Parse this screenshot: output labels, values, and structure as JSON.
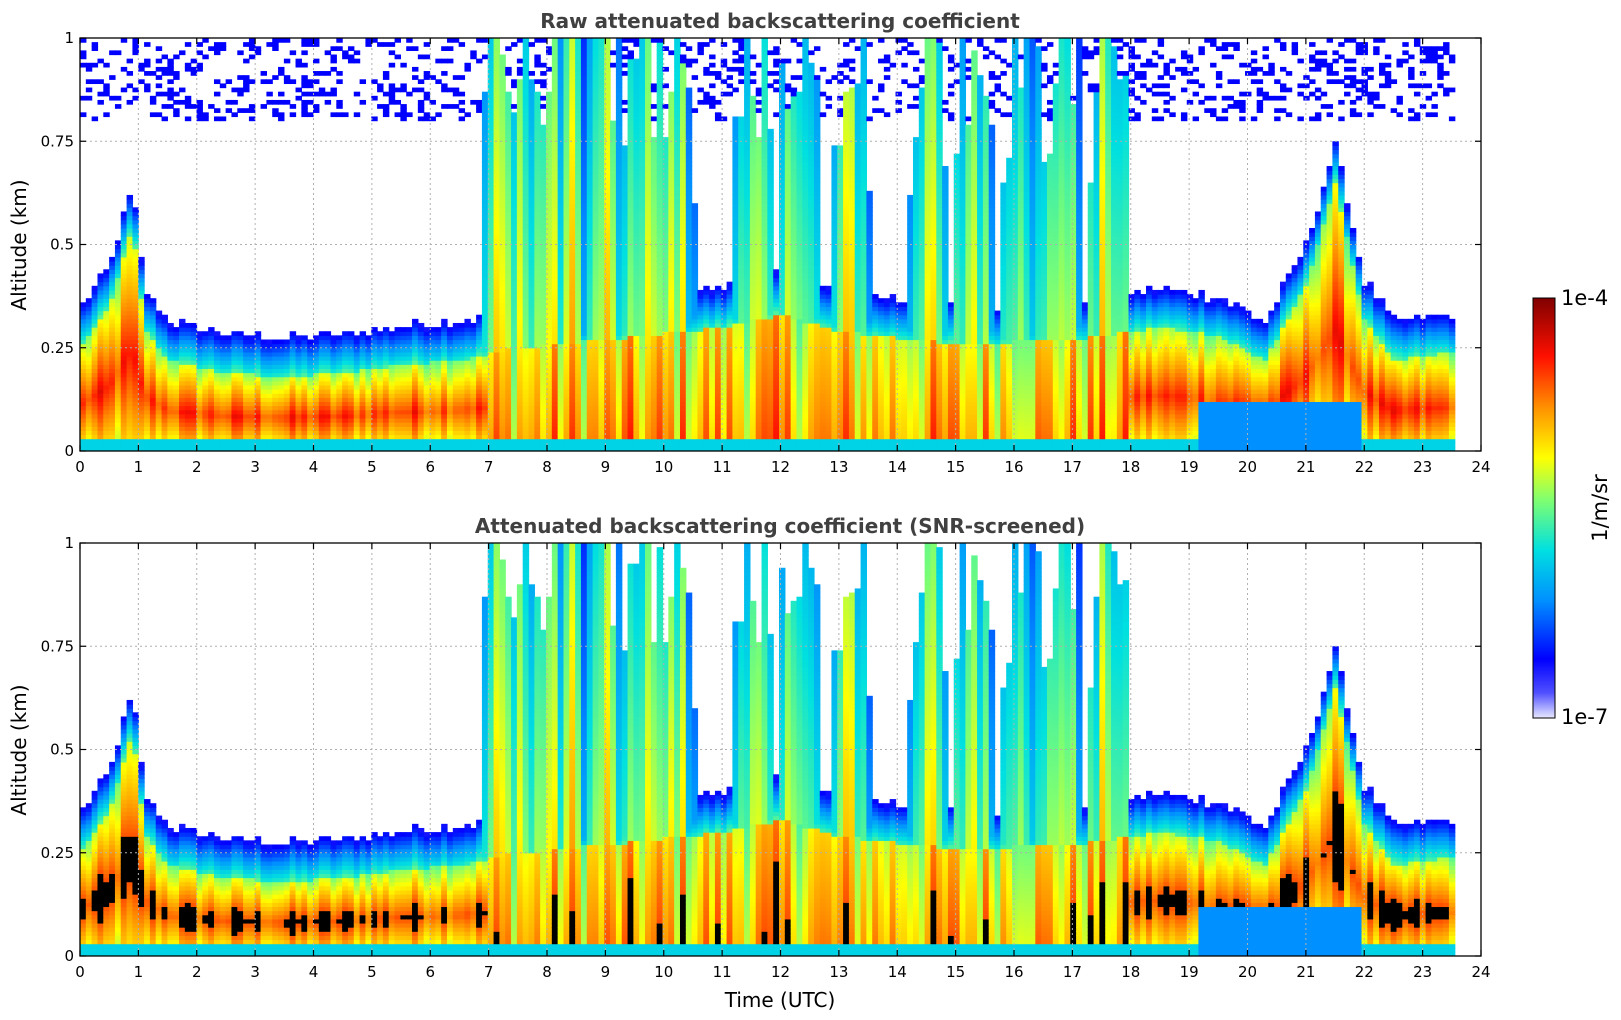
{
  "chart_data": [
    {
      "type": "heatmap",
      "title": "Raw attenuated backscattering coefficient",
      "xlabel": "",
      "ylabel": "Altitude (km)",
      "xlim": [
        0,
        24
      ],
      "ylim": [
        0,
        1
      ],
      "x_ticks": [
        "0",
        "1",
        "2",
        "3",
        "4",
        "5",
        "6",
        "7",
        "8",
        "9",
        "10",
        "11",
        "12",
        "13",
        "14",
        "15",
        "16",
        "17",
        "18",
        "19",
        "20",
        "21",
        "22",
        "23",
        "24"
      ],
      "y_ticks": [
        "0",
        "0.25",
        "0.5",
        "0.75",
        "1"
      ],
      "grid": true,
      "data_end_hour": 23.55,
      "boundary_layer_top_km": [
        {
          "t": 0,
          "z": 0.25
        },
        {
          "t": 0.5,
          "z": 0.35
        },
        {
          "t": 0.9,
          "z": 0.55
        },
        {
          "t": 1.1,
          "z": 0.3
        },
        {
          "t": 1.5,
          "z": 0.22
        },
        {
          "t": 2.5,
          "z": 0.19
        },
        {
          "t": 3.5,
          "z": 0.18
        },
        {
          "t": 4.5,
          "z": 0.19
        },
        {
          "t": 5.5,
          "z": 0.21
        },
        {
          "t": 6.5,
          "z": 0.22
        },
        {
          "t": 7.5,
          "z": 0.25
        },
        {
          "t": 9,
          "z": 0.27
        },
        {
          "t": 11,
          "z": 0.3
        },
        {
          "t": 12,
          "z": 0.33
        },
        {
          "t": 13,
          "z": 0.29
        },
        {
          "t": 15,
          "z": 0.26
        },
        {
          "t": 17,
          "z": 0.27
        },
        {
          "t": 18.5,
          "z": 0.3
        },
        {
          "t": 19.5,
          "z": 0.28
        },
        {
          "t": 20.3,
          "z": 0.22
        },
        {
          "t": 21,
          "z": 0.4
        },
        {
          "t": 21.5,
          "z": 0.65
        },
        {
          "t": 22,
          "z": 0.32
        },
        {
          "t": 22.5,
          "z": 0.22
        },
        {
          "t": 23.55,
          "z": 0.24
        }
      ],
      "cloud_events_hours": [
        7.2,
        7.5,
        8.0,
        8.4,
        9.0,
        9.7,
        10.2,
        11.5,
        12.3,
        13.2,
        14.5,
        15.3,
        16.1,
        16.8,
        17.6
      ]
    },
    {
      "type": "heatmap",
      "title": "Attenuated backscattering coefficient (SNR-screened)",
      "xlabel": "Time (UTC)",
      "ylabel": "Altitude (km)",
      "xlim": [
        0,
        24
      ],
      "ylim": [
        0,
        1
      ],
      "x_ticks": [
        "0",
        "1",
        "2",
        "3",
        "4",
        "5",
        "6",
        "7",
        "8",
        "9",
        "10",
        "11",
        "12",
        "13",
        "14",
        "15",
        "16",
        "17",
        "18",
        "19",
        "20",
        "21",
        "22",
        "23",
        "24"
      ],
      "y_ticks": [
        "0",
        "0.25",
        "0.5",
        "0.75",
        "1"
      ],
      "grid": true,
      "data_end_hour": 23.55
    }
  ],
  "colorbar": {
    "label": "1/m/sr",
    "max_label": "1e-4",
    "min_label": "1e-7",
    "scale": "log",
    "range": [
      1e-07,
      0.0001
    ],
    "colormap": [
      "#e8e8ff",
      "#0000ff",
      "#00c8ff",
      "#7fff7f",
      "#ffff00",
      "#ff8000",
      "#ff0000",
      "#800000"
    ]
  }
}
